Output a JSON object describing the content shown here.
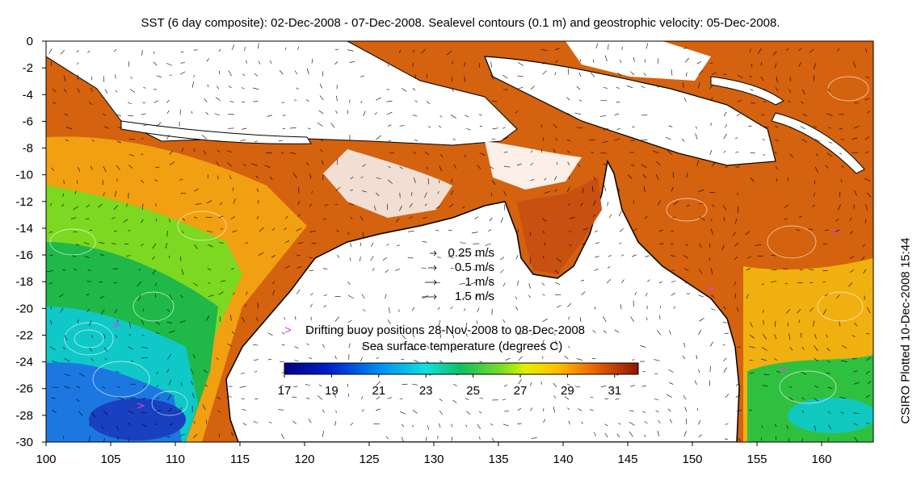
{
  "title": "SST (6 day composite): 02-Dec-2008 - 07-Dec-2008. Sealevel contours (0.1 m) and geostrophic velocity: 05-Dec-2008.",
  "credit": "CSIRO Plotted 10-Dec-2008 15:44",
  "colors": {
    "land": "#ffffff",
    "coast": "#000000",
    "buoy": "#e040e0",
    "cloud": "#ffffff"
  },
  "chart_data": {
    "type": "heatmap",
    "xlim": [
      100,
      164
    ],
    "ylim": [
      -30,
      0
    ],
    "x_ticks": [
      100,
      105,
      110,
      115,
      120,
      125,
      130,
      135,
      140,
      145,
      150,
      155,
      160
    ],
    "x_tick_labels": [
      "100",
      "105",
      "110",
      "115",
      "120",
      "125",
      "130",
      "135",
      "140",
      "145",
      "150",
      "155",
      "160"
    ],
    "y_ticks": [
      0,
      -2,
      -4,
      -6,
      -8,
      -10,
      -12,
      -14,
      -16,
      -18,
      -20,
      -22,
      -24,
      -26,
      -28,
      -30
    ],
    "y_tick_labels": [
      "0",
      "-2",
      "-4",
      "-6",
      "-8",
      "-10",
      "-12",
      "-14",
      "-16",
      "-18",
      "-20",
      "-22",
      "-24",
      "-26",
      "-28",
      "-30"
    ],
    "colorbar": {
      "label": "Sea surface temperature (degrees C)",
      "range": [
        17,
        32
      ],
      "ticks": [
        17,
        19,
        21,
        23,
        25,
        27,
        29,
        31
      ],
      "tick_labels": [
        "17",
        "19",
        "21",
        "23",
        "25",
        "27",
        "29",
        "31"
      ]
    },
    "velocity_legend": [
      {
        "label": "0.25 m/s",
        "speed": 0.25
      },
      {
        "label": "0.5 m/s",
        "speed": 0.5
      },
      {
        "label": "1 m/s",
        "speed": 1
      },
      {
        "label": "1.5 m/s",
        "speed": 1.5
      }
    ],
    "buoy_legend": {
      "symbol": ">",
      "label": "Drifting buoy positions 28-Nov-2008 to 08-Dec-2008"
    }
  }
}
